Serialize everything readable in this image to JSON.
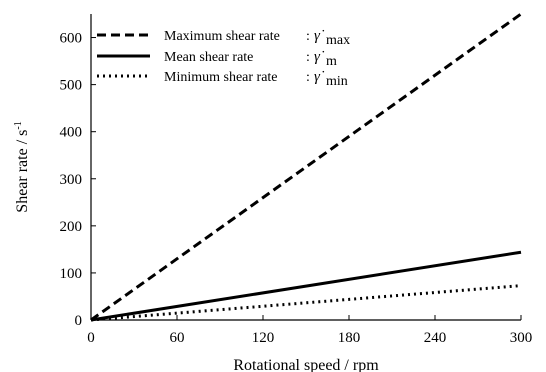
{
  "chart_data": {
    "type": "line",
    "xlabel": "Rotational speed / rpm",
    "ylabel": "Shear rate / s",
    "ylabel_sup": "-1",
    "xlim": [
      0,
      300
    ],
    "ylim": [
      0,
      650
    ],
    "xticks": [
      0,
      60,
      120,
      180,
      240,
      300
    ],
    "yticks": [
      0,
      100,
      200,
      300,
      400,
      500,
      600
    ],
    "grid": false,
    "legend_position": "top-left",
    "series": [
      {
        "name": "Maximum shear rate",
        "symbol": "γ̇",
        "subscript": "max",
        "line_style": "dashed",
        "x": [
          0,
          300
        ],
        "y": [
          0,
          650
        ]
      },
      {
        "name": "Mean shear rate",
        "symbol": "γ̇",
        "subscript": "m",
        "line_style": "solid",
        "x": [
          0,
          300
        ],
        "y": [
          0,
          144
        ]
      },
      {
        "name": "Minimum shear rate",
        "symbol": "γ̇",
        "subscript": "min",
        "line_style": "dotted",
        "x": [
          0,
          300
        ],
        "y": [
          0,
          73
        ]
      }
    ]
  }
}
